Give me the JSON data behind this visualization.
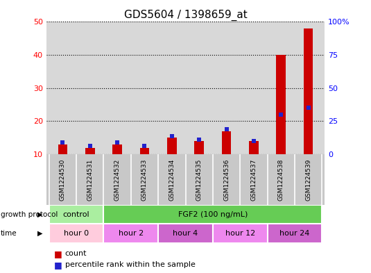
{
  "title": "GDS5604 / 1398659_at",
  "samples": [
    "GSM1224530",
    "GSM1224531",
    "GSM1224532",
    "GSM1224533",
    "GSM1224534",
    "GSM1224535",
    "GSM1224536",
    "GSM1224537",
    "GSM1224538",
    "GSM1224539"
  ],
  "count_values": [
    13.0,
    12.0,
    13.0,
    12.0,
    15.0,
    14.0,
    17.0,
    14.0,
    40.0,
    48.0
  ],
  "percentile_left_axis": [
    13.5,
    12.5,
    13.5,
    12.5,
    15.5,
    14.5,
    17.5,
    14.0,
    22.0,
    24.0
  ],
  "left_ylim": [
    10,
    50
  ],
  "left_yticks": [
    10,
    20,
    30,
    40,
    50
  ],
  "right_ylim": [
    0,
    100
  ],
  "right_yticks": [
    0,
    25,
    50,
    75,
    100
  ],
  "right_yticklabels": [
    "0",
    "25",
    "50",
    "75",
    "100%"
  ],
  "bar_color": "#cc0000",
  "percentile_color": "#2222cc",
  "plot_bg": "#d8d8d8",
  "sample_bg": "#c8c8c8",
  "growth_protocol_groups": [
    {
      "label": "control",
      "start": 0,
      "end": 1,
      "color": "#aaeea0"
    },
    {
      "label": "FGF2 (100 ng/mL)",
      "start": 2,
      "end": 9,
      "color": "#66cc55"
    }
  ],
  "time_groups": [
    {
      "label": "hour 0",
      "start": 0,
      "end": 1,
      "color": "#ffccdd"
    },
    {
      "label": "hour 2",
      "start": 2,
      "end": 3,
      "color": "#ee88ee"
    },
    {
      "label": "hour 4",
      "start": 4,
      "end": 5,
      "color": "#cc66cc"
    },
    {
      "label": "hour 12",
      "start": 6,
      "end": 7,
      "color": "#ee88ee"
    },
    {
      "label": "hour 24",
      "start": 8,
      "end": 9,
      "color": "#cc66cc"
    }
  ],
  "growth_protocol_label": "growth protocol",
  "time_label": "time",
  "legend_count": "count",
  "legend_percentile": "percentile rank within the sample",
  "bar_width": 0.35
}
